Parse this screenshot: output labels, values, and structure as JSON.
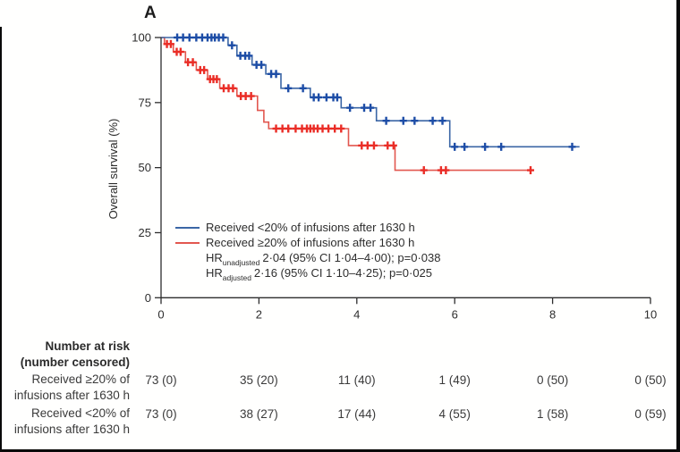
{
  "chart_data": {
    "type": "line",
    "subtype": "kaplan-meier-step",
    "title": "A",
    "ylabel": "Overall survival (%)",
    "xlabel": "",
    "xlim": [
      0,
      10
    ],
    "ylim": [
      0,
      100
    ],
    "xticks": [
      0,
      2,
      4,
      6,
      8,
      10
    ],
    "yticks": [
      0,
      25,
      50,
      75,
      100
    ],
    "grid": false,
    "legend_position": "inside-lower-left",
    "series": [
      {
        "name": "Received <20% of infusions after 1630 h",
        "color": "#3b66a5",
        "censor_color": "#1d4da6",
        "points": [
          [
            0,
            100
          ],
          [
            1.37,
            100
          ],
          [
            1.37,
            97
          ],
          [
            1.55,
            97
          ],
          [
            1.55,
            93
          ],
          [
            1.86,
            93
          ],
          [
            1.86,
            89.5
          ],
          [
            2.14,
            89.5
          ],
          [
            2.14,
            86
          ],
          [
            2.45,
            86
          ],
          [
            2.45,
            80.5
          ],
          [
            3.05,
            80.5
          ],
          [
            3.05,
            77
          ],
          [
            3.68,
            77
          ],
          [
            3.68,
            73
          ],
          [
            4.4,
            73
          ],
          [
            4.4,
            68
          ],
          [
            5.9,
            68
          ],
          [
            5.9,
            58
          ],
          [
            8.55,
            58
          ]
        ],
        "censors": [
          [
            0.33,
            100
          ],
          [
            0.45,
            100
          ],
          [
            0.58,
            100
          ],
          [
            0.72,
            100
          ],
          [
            0.84,
            100
          ],
          [
            0.95,
            100
          ],
          [
            1.03,
            100
          ],
          [
            1.1,
            100
          ],
          [
            1.18,
            100
          ],
          [
            1.27,
            100
          ],
          [
            1.45,
            97
          ],
          [
            1.62,
            93
          ],
          [
            1.72,
            93
          ],
          [
            1.8,
            93
          ],
          [
            1.95,
            89.5
          ],
          [
            2.05,
            89.5
          ],
          [
            2.25,
            86
          ],
          [
            2.35,
            86
          ],
          [
            2.6,
            80.5
          ],
          [
            2.9,
            80.5
          ],
          [
            3.12,
            77
          ],
          [
            3.22,
            77
          ],
          [
            3.38,
            77
          ],
          [
            3.52,
            77
          ],
          [
            3.6,
            77
          ],
          [
            3.86,
            73
          ],
          [
            4.15,
            73
          ],
          [
            4.28,
            73
          ],
          [
            4.6,
            68
          ],
          [
            4.95,
            68
          ],
          [
            5.18,
            68
          ],
          [
            5.55,
            68
          ],
          [
            5.75,
            68
          ],
          [
            6.0,
            58
          ],
          [
            6.2,
            58
          ],
          [
            6.62,
            58
          ],
          [
            6.95,
            58
          ],
          [
            8.4,
            58
          ]
        ]
      },
      {
        "name": "Received ≥20% of infusions after 1630 h",
        "color": "#e2574f",
        "censor_color": "#ea2d26",
        "points": [
          [
            0,
            100
          ],
          [
            0.07,
            100
          ],
          [
            0.07,
            97.5
          ],
          [
            0.25,
            97.5
          ],
          [
            0.25,
            94.5
          ],
          [
            0.5,
            94.5
          ],
          [
            0.5,
            90.5
          ],
          [
            0.72,
            90.5
          ],
          [
            0.72,
            87.5
          ],
          [
            0.95,
            87.5
          ],
          [
            0.95,
            84
          ],
          [
            1.2,
            84
          ],
          [
            1.2,
            80.5
          ],
          [
            1.55,
            80.5
          ],
          [
            1.55,
            77.5
          ],
          [
            1.97,
            77.5
          ],
          [
            1.97,
            72
          ],
          [
            2.1,
            72
          ],
          [
            2.1,
            67.5
          ],
          [
            2.2,
            67.5
          ],
          [
            2.2,
            65
          ],
          [
            3.83,
            65
          ],
          [
            3.83,
            58.5
          ],
          [
            4.78,
            58.5
          ],
          [
            4.78,
            49
          ],
          [
            7.62,
            49
          ]
        ],
        "censors": [
          [
            0.12,
            97.5
          ],
          [
            0.2,
            97.5
          ],
          [
            0.32,
            94.5
          ],
          [
            0.4,
            94.5
          ],
          [
            0.55,
            90.5
          ],
          [
            0.65,
            90.5
          ],
          [
            0.8,
            87.5
          ],
          [
            0.88,
            87.5
          ],
          [
            1.0,
            84
          ],
          [
            1.07,
            84
          ],
          [
            1.14,
            84
          ],
          [
            1.28,
            80.5
          ],
          [
            1.38,
            80.5
          ],
          [
            1.47,
            80.5
          ],
          [
            1.63,
            77.5
          ],
          [
            1.73,
            77.5
          ],
          [
            1.84,
            77.5
          ],
          [
            2.35,
            65
          ],
          [
            2.48,
            65
          ],
          [
            2.6,
            65
          ],
          [
            2.75,
            65
          ],
          [
            2.88,
            65
          ],
          [
            2.98,
            65
          ],
          [
            3.05,
            65
          ],
          [
            3.12,
            65
          ],
          [
            3.2,
            65
          ],
          [
            3.3,
            65
          ],
          [
            3.42,
            65
          ],
          [
            3.55,
            65
          ],
          [
            3.68,
            65
          ],
          [
            4.1,
            58.5
          ],
          [
            4.22,
            58.5
          ],
          [
            4.35,
            58.5
          ],
          [
            4.63,
            58.5
          ],
          [
            4.75,
            58.5
          ],
          [
            5.37,
            49
          ],
          [
            5.72,
            49
          ],
          [
            5.82,
            49
          ],
          [
            7.55,
            49
          ]
        ]
      }
    ],
    "hr_annotations": [
      {
        "prefix": "HR",
        "sub": "unadjusted",
        "text": "2·04 (95% CI 1·04–4·00); p=0·038"
      },
      {
        "prefix": "HR",
        "sub": "adjusted",
        "text": "2·16 (95% CI 1·10–4·25); p=0·025"
      }
    ]
  },
  "risk_table": {
    "header_line1": "Number at risk",
    "header_line2": "(number censored)",
    "rows": [
      {
        "label_line1": "Received ≥20% of",
        "label_line2": "infusions after 1630 h",
        "values": [
          "73 (0)",
          "35 (20)",
          "11 (40)",
          "1 (49)",
          "0 (50)",
          "0 (50)"
        ]
      },
      {
        "label_line1": "Received <20% of",
        "label_line2": "infusions after 1630 h",
        "values": [
          "73 (0)",
          "38 (27)",
          "17 (44)",
          "4 (55)",
          "1 (58)",
          "0 (59)"
        ]
      }
    ]
  }
}
